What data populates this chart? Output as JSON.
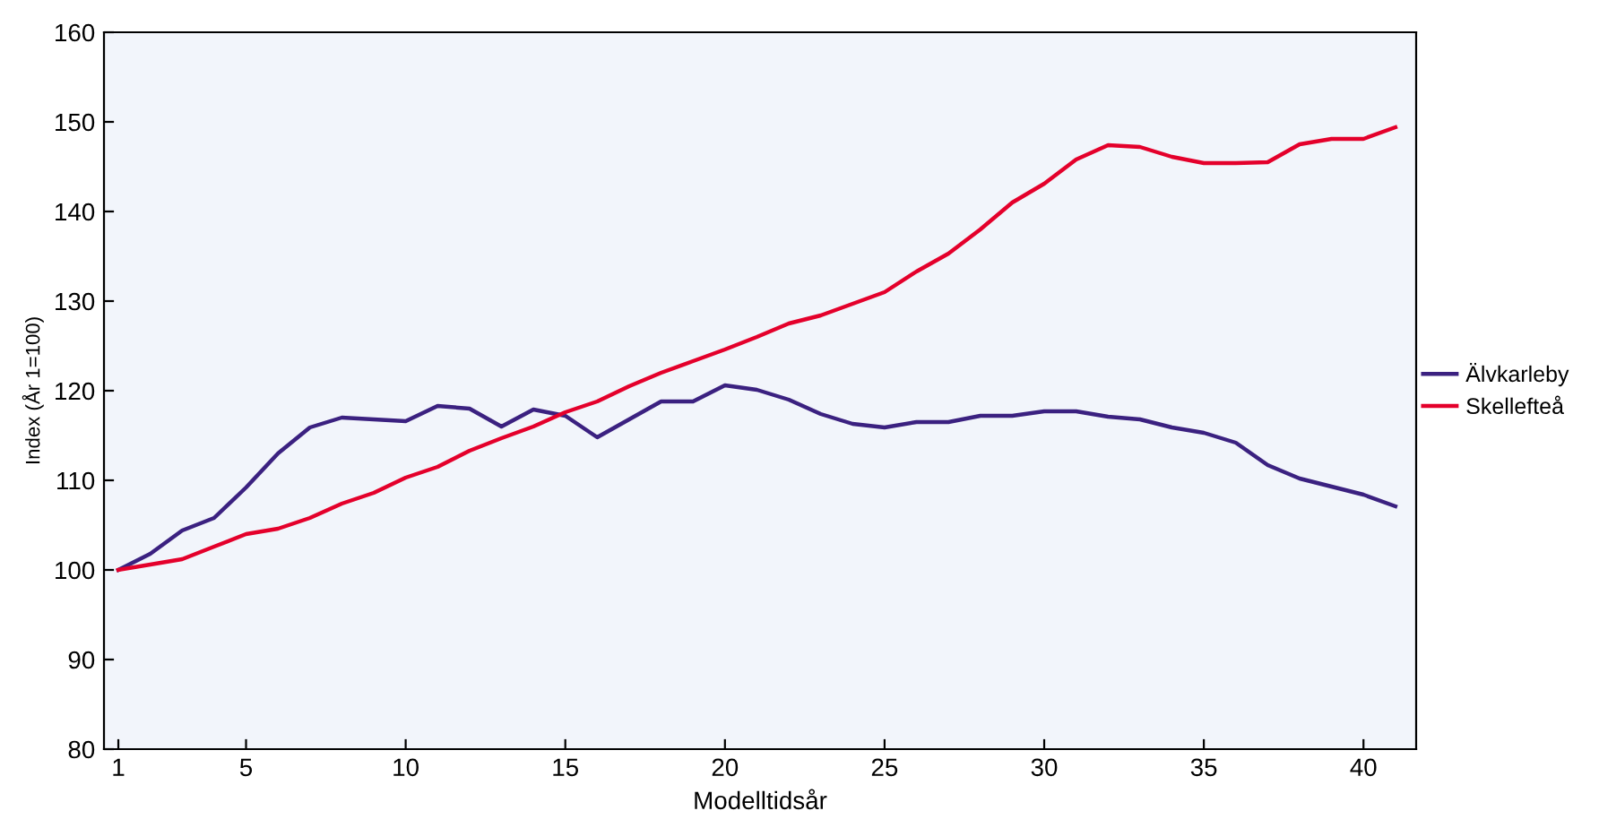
{
  "chart_data": {
    "type": "line",
    "xlabel": "Modelltidsår",
    "ylabel": "Index (År 1=100)",
    "x": [
      1,
      2,
      3,
      4,
      5,
      6,
      7,
      8,
      9,
      10,
      11,
      12,
      13,
      14,
      15,
      16,
      17,
      18,
      19,
      20,
      21,
      22,
      23,
      24,
      25,
      26,
      27,
      28,
      29,
      30,
      31,
      32,
      33,
      34,
      35,
      36,
      37,
      38,
      39,
      40,
      41
    ],
    "series": [
      {
        "name": "Älvkarleby",
        "color": "#3b2180",
        "values": [
          100,
          101.8,
          104.4,
          105.8,
          109.2,
          113,
          115.9,
          117,
          116.8,
          116.6,
          118.3,
          118,
          116,
          117.9,
          117.2,
          114.8,
          116.8,
          118.8,
          118.8,
          120.6,
          120.1,
          119,
          117.4,
          116.3,
          115.9,
          116.5,
          116.5,
          117.2,
          117.2,
          117.7,
          117.7,
          117.1,
          116.8,
          115.9,
          115.3,
          114.2,
          111.7,
          110.2,
          109.3,
          108.4,
          107.1
        ]
      },
      {
        "name": "Skellefteå",
        "color": "#e4002b",
        "values": [
          100,
          100.6,
          101.2,
          102.6,
          104,
          104.6,
          105.8,
          107.4,
          108.6,
          110.3,
          111.5,
          113.3,
          114.7,
          116,
          117.6,
          118.8,
          120.5,
          122,
          123.3,
          124.6,
          126,
          127.5,
          128.4,
          129.7,
          131,
          133.3,
          135.3,
          138,
          141,
          143.1,
          145.8,
          147.4,
          147.2,
          146.1,
          145.4,
          145.4,
          145.5,
          147.5,
          148.1,
          148.1,
          149.4
        ]
      }
    ],
    "xlim": [
      0.55,
      41.65
    ],
    "xticks": [
      1,
      5,
      10,
      15,
      20,
      25,
      30,
      35,
      40
    ],
    "ylim": [
      80,
      160
    ],
    "yticks": [
      80,
      90,
      100,
      110,
      120,
      130,
      140,
      150,
      160
    ],
    "grid": false,
    "legend": "right",
    "marker": "none",
    "line_style": "solid"
  }
}
